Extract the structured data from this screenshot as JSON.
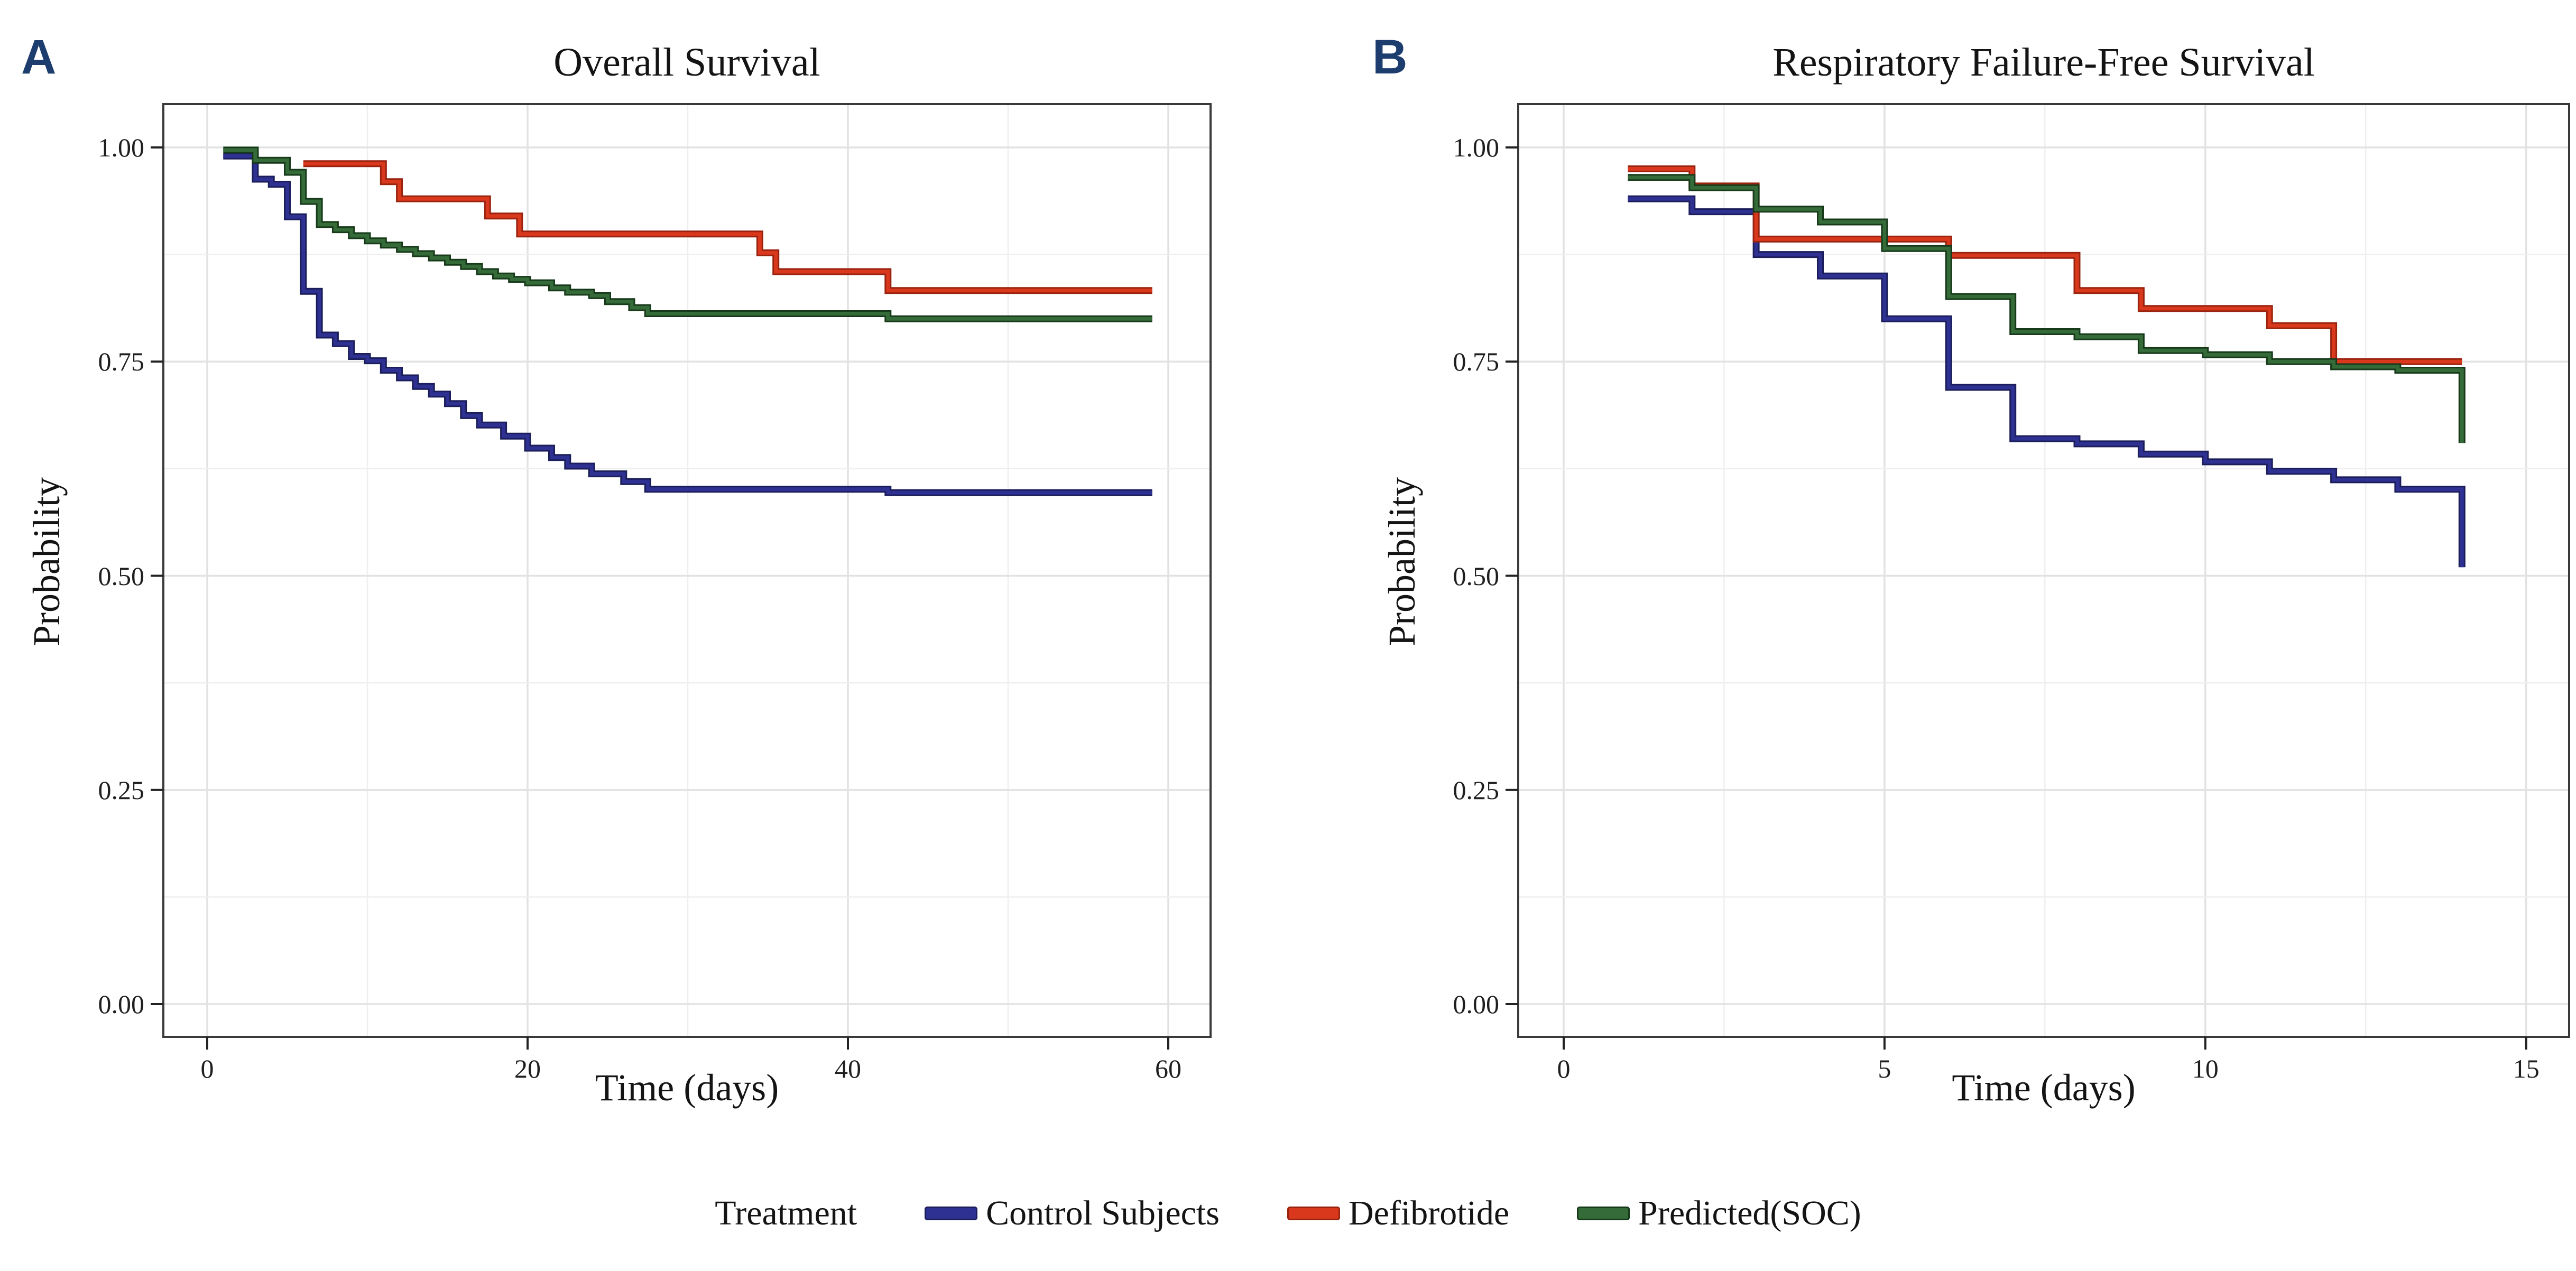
{
  "figure": {
    "background": "#ffffff",
    "panel_label_color": "#1d3d6e",
    "panels": [
      {
        "label": "A",
        "title": "Overall Survival",
        "xlabel": "Time (days)",
        "ylabel": "Probability"
      },
      {
        "label": "B",
        "title": "Respiratory Failure-Free Survival",
        "xlabel": "Time (days)",
        "ylabel": "Probability"
      }
    ],
    "legend": {
      "title": "Treatment",
      "items": [
        {
          "label": "Control Subjects",
          "color": "#2e3192",
          "edge_color": "#1b1e5a"
        },
        {
          "label": "Defibrotide",
          "color": "#d9381c",
          "edge_color": "#99230f"
        },
        {
          "label": "Predicted(SOC)",
          "color": "#356b38",
          "edge_color": "#173a1a"
        }
      ]
    }
  },
  "chart_data": [
    {
      "type": "line",
      "subtype": "kaplan-meier-step",
      "panel": "A",
      "title": "Overall Survival",
      "xlabel": "Time (days)",
      "ylabel": "Probability",
      "xlim": [
        0,
        60
      ],
      "ylim": [
        0,
        1
      ],
      "grid": true,
      "legend_position": "bottom",
      "x_minor_interval": 10,
      "y_minor_interval": 0.125,
      "xticks": [
        {
          "value": 0,
          "label": "0"
        },
        {
          "value": 20,
          "label": "20"
        },
        {
          "value": 40,
          "label": "40"
        },
        {
          "value": 60,
          "label": "60"
        }
      ],
      "yticks": [
        {
          "value": 0,
          "label": "0.00"
        },
        {
          "value": 0.25,
          "label": "0.25"
        },
        {
          "value": 0.5,
          "label": "0.50"
        },
        {
          "value": 0.75,
          "label": "0.75"
        },
        {
          "value": 1,
          "label": "1.00"
        }
      ],
      "series": [
        {
          "name": "Control Subjects",
          "color": "#2e3192",
          "edge_color": "#1b1e5a",
          "points": [
            [
              1,
              0.99
            ],
            [
              3,
              0.963
            ],
            [
              4,
              0.957
            ],
            [
              5,
              0.919
            ],
            [
              6,
              0.832
            ],
            [
              7,
              0.781
            ],
            [
              8,
              0.771
            ],
            [
              9,
              0.756
            ],
            [
              10,
              0.751
            ],
            [
              11,
              0.74
            ],
            [
              12,
              0.731
            ],
            [
              13,
              0.721
            ],
            [
              14,
              0.712
            ],
            [
              15,
              0.701
            ],
            [
              16,
              0.687
            ],
            [
              17,
              0.676
            ],
            [
              18.5,
              0.663
            ],
            [
              20,
              0.649
            ],
            [
              21.5,
              0.638
            ],
            [
              22.5,
              0.628
            ],
            [
              24,
              0.619
            ],
            [
              26,
              0.61
            ],
            [
              27.5,
              0.601
            ],
            [
              42.5,
              0.597
            ],
            [
              59,
              0.597
            ]
          ]
        },
        {
          "name": "Defibrotide",
          "color": "#d9381c",
          "edge_color": "#99230f",
          "points": [
            [
              6,
              0.981
            ],
            [
              11,
              0.96
            ],
            [
              12,
              0.94
            ],
            [
              17.5,
              0.92
            ],
            [
              19.5,
              0.899
            ],
            [
              34.5,
              0.877
            ],
            [
              35.5,
              0.855
            ],
            [
              42.5,
              0.833
            ],
            [
              59,
              0.833
            ]
          ]
        },
        {
          "name": "Predicted(SOC)",
          "color": "#356b38",
          "edge_color": "#173a1a",
          "points": [
            [
              1,
              0.997
            ],
            [
              3,
              0.985
            ],
            [
              5,
              0.971
            ],
            [
              6,
              0.937
            ],
            [
              7,
              0.91
            ],
            [
              8,
              0.904
            ],
            [
              9,
              0.897
            ],
            [
              10,
              0.891
            ],
            [
              11,
              0.886
            ],
            [
              12,
              0.881
            ],
            [
              13,
              0.876
            ],
            [
              14,
              0.871
            ],
            [
              15,
              0.866
            ],
            [
              16,
              0.861
            ],
            [
              17,
              0.855
            ],
            [
              18,
              0.85
            ],
            [
              19,
              0.846
            ],
            [
              20,
              0.842
            ],
            [
              21.5,
              0.836
            ],
            [
              22.5,
              0.831
            ],
            [
              24,
              0.827
            ],
            [
              25,
              0.82
            ],
            [
              26.5,
              0.813
            ],
            [
              27.5,
              0.806
            ],
            [
              42.5,
              0.8
            ],
            [
              59,
              0.8
            ]
          ]
        }
      ]
    },
    {
      "type": "line",
      "subtype": "kaplan-meier-step",
      "panel": "B",
      "title": "Respiratory Failure-Free Survival",
      "xlabel": "Time (days)",
      "ylabel": "Probability",
      "xlim": [
        0,
        15
      ],
      "ylim": [
        0,
        1
      ],
      "grid": true,
      "legend_position": "bottom",
      "x_minor_interval": 2.5,
      "y_minor_interval": 0.125,
      "xticks": [
        {
          "value": 0,
          "label": "0"
        },
        {
          "value": 5,
          "label": "5"
        },
        {
          "value": 10,
          "label": "10"
        },
        {
          "value": 15,
          "label": "15"
        }
      ],
      "yticks": [
        {
          "value": 0,
          "label": "0.00"
        },
        {
          "value": 0.25,
          "label": "0.25"
        },
        {
          "value": 0.5,
          "label": "0.50"
        },
        {
          "value": 0.75,
          "label": "0.75"
        },
        {
          "value": 1,
          "label": "1.00"
        }
      ],
      "series": [
        {
          "name": "Control Subjects",
          "color": "#2e3192",
          "edge_color": "#1b1e5a",
          "points": [
            [
              1,
              0.94
            ],
            [
              2,
              0.925
            ],
            [
              3,
              0.875
            ],
            [
              4,
              0.85
            ],
            [
              5,
              0.8
            ],
            [
              6,
              0.72
            ],
            [
              7,
              0.66
            ],
            [
              8,
              0.654
            ],
            [
              9,
              0.642
            ],
            [
              10,
              0.633
            ],
            [
              11,
              0.622
            ],
            [
              12,
              0.612
            ],
            [
              13,
              0.601
            ],
            [
              14,
              0.51
            ]
          ]
        },
        {
          "name": "Defibrotide",
          "color": "#d9381c",
          "edge_color": "#99230f",
          "points": [
            [
              1,
              0.975
            ],
            [
              2,
              0.955
            ],
            [
              3,
              0.893
            ],
            [
              6,
              0.874
            ],
            [
              8,
              0.833
            ],
            [
              9,
              0.812
            ],
            [
              11,
              0.792
            ],
            [
              12,
              0.75
            ],
            [
              14,
              0.75
            ]
          ]
        },
        {
          "name": "Predicted(SOC)",
          "color": "#356b38",
          "edge_color": "#173a1a",
          "points": [
            [
              1,
              0.965
            ],
            [
              2,
              0.953
            ],
            [
              3,
              0.928
            ],
            [
              4,
              0.913
            ],
            [
              5,
              0.882
            ],
            [
              6,
              0.826
            ],
            [
              7,
              0.785
            ],
            [
              8,
              0.779
            ],
            [
              9,
              0.763
            ],
            [
              10,
              0.758
            ],
            [
              11,
              0.75
            ],
            [
              12,
              0.744
            ],
            [
              13,
              0.74
            ],
            [
              14,
              0.655
            ]
          ]
        }
      ]
    }
  ]
}
